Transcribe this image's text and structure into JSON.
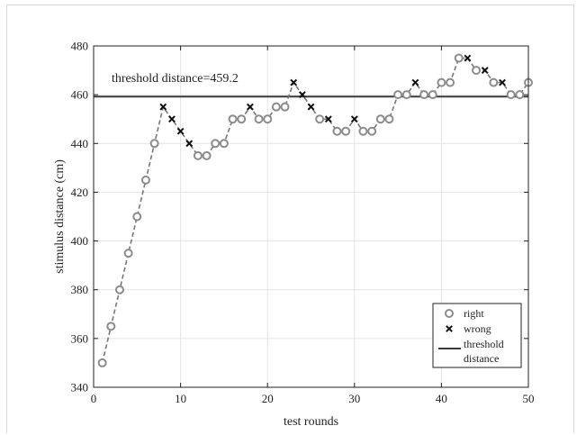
{
  "chart_data": {
    "type": "scatter",
    "xlabel": "test rounds",
    "ylabel": "stimulus distance (cm)",
    "xlim": [
      0,
      50
    ],
    "ylim": [
      340,
      480
    ],
    "xticks": [
      0,
      10,
      20,
      30,
      40,
      50
    ],
    "yticks": [
      340,
      360,
      380,
      400,
      420,
      440,
      460,
      480
    ],
    "grid": true,
    "legend_position": "bottom-right",
    "annotation": "threshold distance=459.2",
    "series": [
      {
        "name": "right",
        "marker": "circle",
        "color": "#8c8c8c",
        "points": [
          [
            1,
            350
          ],
          [
            2,
            365
          ],
          [
            3,
            380
          ],
          [
            4,
            395
          ],
          [
            5,
            410
          ],
          [
            6,
            425
          ],
          [
            7,
            440
          ],
          [
            12,
            435
          ],
          [
            13,
            435
          ],
          [
            14,
            440
          ],
          [
            15,
            440
          ],
          [
            16,
            450
          ],
          [
            17,
            450
          ],
          [
            19,
            450
          ],
          [
            20,
            450
          ],
          [
            21,
            455
          ],
          [
            22,
            455
          ],
          [
            26,
            450
          ],
          [
            28,
            445
          ],
          [
            29,
            445
          ],
          [
            31,
            445
          ],
          [
            32,
            445
          ],
          [
            33,
            450
          ],
          [
            34,
            450
          ],
          [
            35,
            460
          ],
          [
            36,
            460
          ],
          [
            38,
            460
          ],
          [
            39,
            460
          ],
          [
            40,
            465
          ],
          [
            41,
            465
          ],
          [
            42,
            475
          ],
          [
            44,
            470
          ],
          [
            46,
            465
          ],
          [
            48,
            460
          ],
          [
            49,
            460
          ],
          [
            50,
            465
          ]
        ]
      },
      {
        "name": "wrong",
        "marker": "x",
        "color": "#111111",
        "points": [
          [
            8,
            455
          ],
          [
            9,
            450
          ],
          [
            10,
            445
          ],
          [
            11,
            440
          ],
          [
            18,
            455
          ],
          [
            23,
            465
          ],
          [
            24,
            460
          ],
          [
            25,
            455
          ],
          [
            27,
            450
          ],
          [
            30,
            450
          ],
          [
            37,
            465
          ],
          [
            43,
            475
          ],
          [
            45,
            470
          ],
          [
            47,
            465
          ]
        ]
      },
      {
        "name": "threshold distance",
        "type": "hline",
        "color": "#3a3a3a",
        "value": 459.2
      }
    ],
    "connecting_line": {
      "style": "dashed",
      "color": "#777777",
      "values": [
        350,
        365,
        380,
        395,
        410,
        425,
        440,
        455,
        450,
        445,
        440,
        435,
        435,
        440,
        440,
        450,
        450,
        455,
        450,
        450,
        455,
        455,
        465,
        460,
        455,
        450,
        450,
        445,
        445,
        450,
        445,
        445,
        450,
        450,
        460,
        460,
        465,
        460,
        460,
        465,
        465,
        475,
        475,
        470,
        470,
        465,
        465,
        460,
        460,
        465
      ]
    }
  },
  "legend": {
    "right": "right",
    "wrong": "wrong",
    "threshold_line1": "threshold",
    "threshold_line2": "distance"
  }
}
